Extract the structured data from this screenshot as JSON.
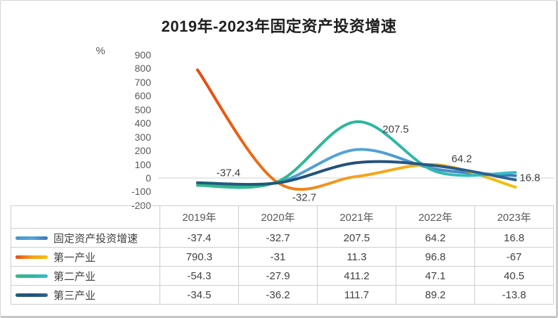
{
  "title": "2019年-2023年固定资产投资增速",
  "axis": {
    "unit_label": "%",
    "ticks": [
      900,
      800,
      700,
      600,
      500,
      400,
      300,
      200,
      100,
      0,
      -100,
      -200
    ]
  },
  "chart_data": {
    "type": "line",
    "title": "2019年-2023年固定资产投资增速",
    "ylabel": "%",
    "ylim": [
      -200,
      900
    ],
    "grid": "zero-line-only",
    "legend_position": "table-left-column",
    "line_style": "smooth",
    "categories": [
      "2019年",
      "2020年",
      "2021年",
      "2022年",
      "2023年"
    ],
    "series": [
      {
        "name": "固定资产投资增速",
        "values": [
          -37.4,
          -32.7,
          207.5,
          64.2,
          16.8
        ],
        "colors": [
          "#4893c6",
          "#55a5d8",
          "#3c79b8"
        ]
      },
      {
        "name": "第一产业",
        "values": [
          790.3,
          -31,
          11.3,
          96.8,
          -67
        ],
        "colors": [
          "#e8490f",
          "#f5a21d",
          "#f0c011"
        ]
      },
      {
        "name": "第二产业",
        "values": [
          -54.3,
          -27.9,
          411.2,
          47.1,
          40.5
        ],
        "colors": [
          "#36b98b",
          "#2cb69c",
          "#38bec6"
        ]
      },
      {
        "name": "第三产业",
        "values": [
          -34.5,
          -36.2,
          111.7,
          89.2,
          -13.8
        ],
        "colors": [
          "#20607a",
          "#224f78",
          "#2f6496"
        ]
      }
    ],
    "annotations": [
      {
        "text": "-37.4",
        "series": 0,
        "point": 0
      },
      {
        "text": "-32.7",
        "series": 0,
        "point": 1
      },
      {
        "text": "207.5",
        "series": 0,
        "point": 2
      },
      {
        "text": "64.2",
        "series": 0,
        "point": 3
      },
      {
        "text": "16.8",
        "series": 0,
        "point": 4
      }
    ],
    "gridline_color": "#d9d9d9",
    "text_color": "#404040"
  }
}
